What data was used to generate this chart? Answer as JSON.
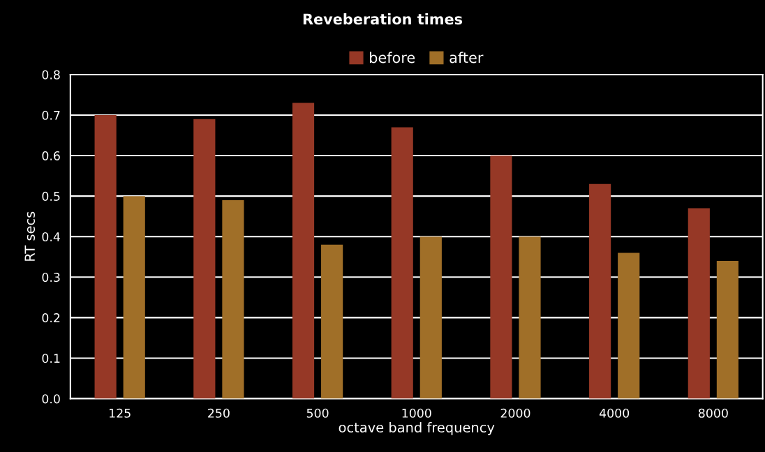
{
  "chart_data": {
    "type": "bar",
    "title": "Reveberation times",
    "xlabel": "octave band frequency",
    "ylabel": "RT secs",
    "categories": [
      "125",
      "250",
      "500",
      "1000",
      "2000",
      "4000",
      "8000"
    ],
    "series": [
      {
        "name": "before",
        "color": "#963826",
        "values": [
          0.7,
          0.69,
          0.73,
          0.67,
          0.6,
          0.53,
          0.47
        ]
      },
      {
        "name": "after",
        "color": "#a06f28",
        "values": [
          0.5,
          0.49,
          0.38,
          0.4,
          0.4,
          0.36,
          0.34
        ]
      }
    ],
    "ylim": [
      0,
      0.8
    ],
    "yticks": [
      {
        "value": 0,
        "label": "0.0"
      },
      0.1,
      0.2,
      0.3,
      0.4,
      0.5,
      0.6,
      0.7,
      0.8
    ],
    "grid": "y",
    "legend": "top"
  }
}
